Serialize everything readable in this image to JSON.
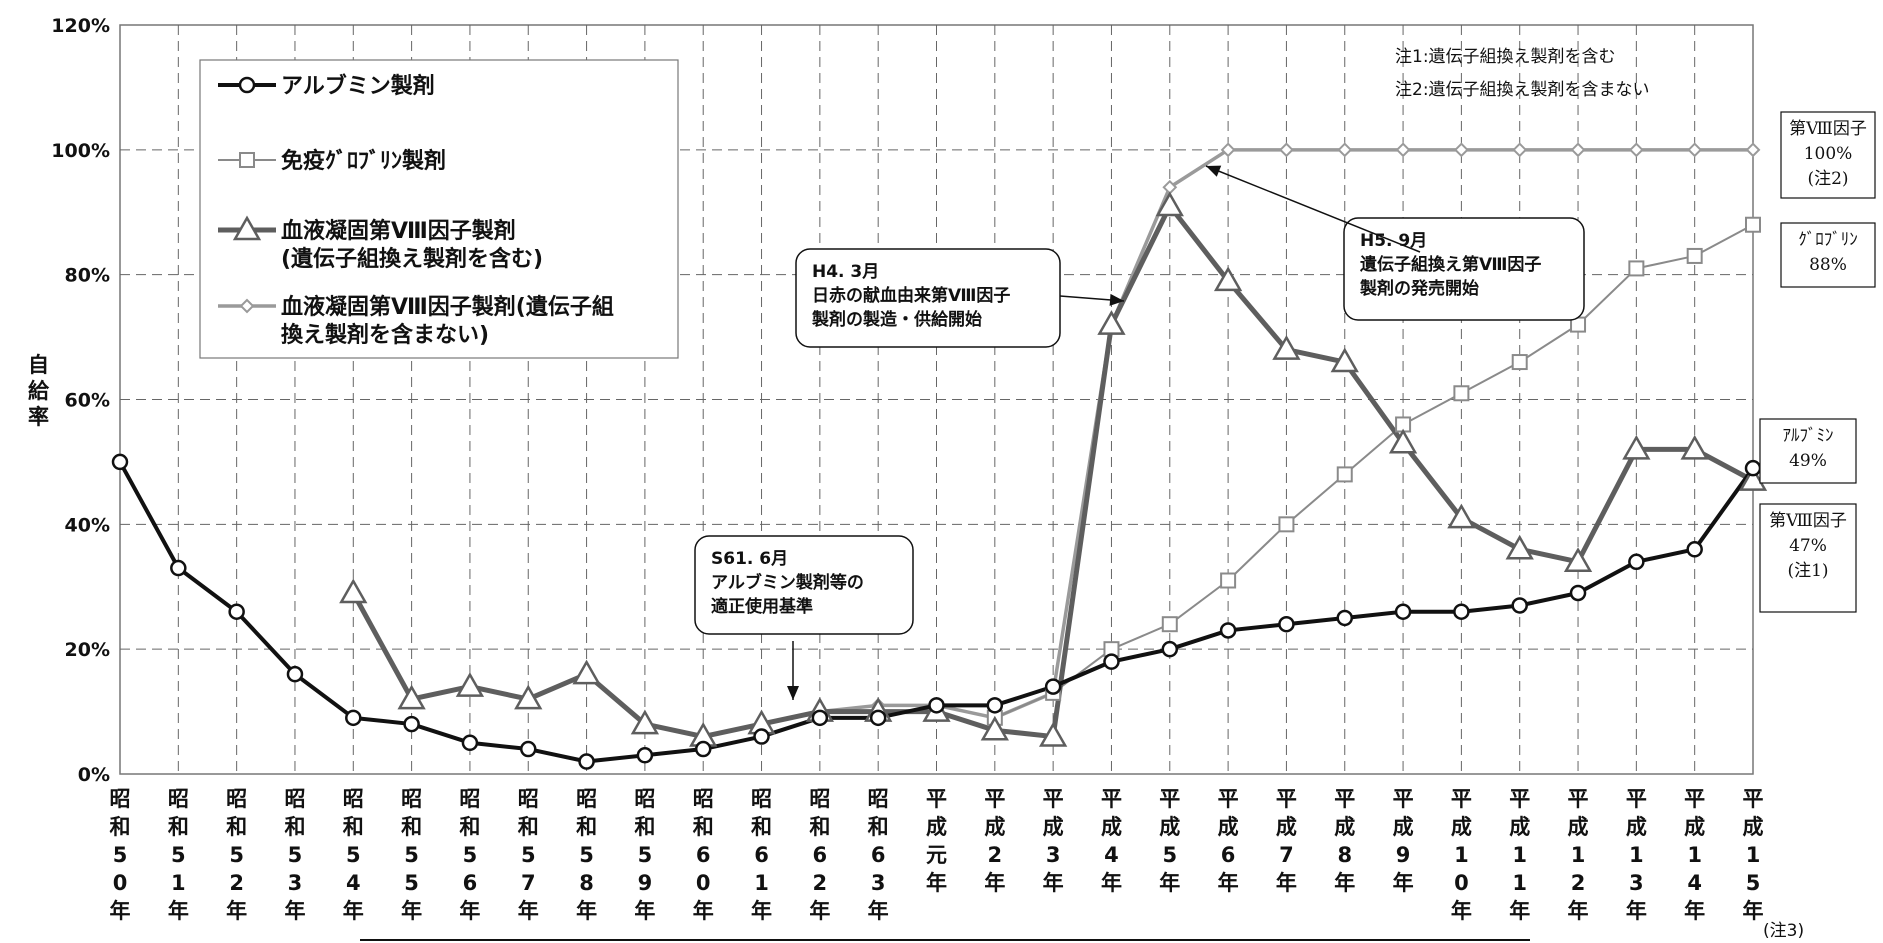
{
  "chart_data": {
    "type": "line",
    "ylabel": "自給率",
    "ylim": [
      0,
      120
    ],
    "yticks": [
      "0%",
      "20%",
      "40%",
      "60%",
      "80%",
      "100%",
      "120%"
    ],
    "grid": true,
    "legend_position": "top-left",
    "categories": [
      "昭和50年",
      "昭和51年",
      "昭和52年",
      "昭和53年",
      "昭和54年",
      "昭和55年",
      "昭和56年",
      "昭和57年",
      "昭和58年",
      "昭和59年",
      "昭和60年",
      "昭和61年",
      "昭和62年",
      "昭和63年",
      "平成元年",
      "平成2年",
      "平成3年",
      "平成4年",
      "平成5年",
      "平成6年",
      "平成7年",
      "平成8年",
      "平成9年",
      "平成10年",
      "平成11年",
      "平成12年",
      "平成13年",
      "平成14年",
      "平成15年"
    ],
    "category_labels": [
      [
        "昭",
        "和",
        "5",
        "0",
        "年"
      ],
      [
        "昭",
        "和",
        "5",
        "1",
        "年"
      ],
      [
        "昭",
        "和",
        "5",
        "2",
        "年"
      ],
      [
        "昭",
        "和",
        "5",
        "3",
        "年"
      ],
      [
        "昭",
        "和",
        "5",
        "4",
        "年"
      ],
      [
        "昭",
        "和",
        "5",
        "5",
        "年"
      ],
      [
        "昭",
        "和",
        "5",
        "6",
        "年"
      ],
      [
        "昭",
        "和",
        "5",
        "7",
        "年"
      ],
      [
        "昭",
        "和",
        "5",
        "8",
        "年"
      ],
      [
        "昭",
        "和",
        "5",
        "9",
        "年"
      ],
      [
        "昭",
        "和",
        "6",
        "0",
        "年"
      ],
      [
        "昭",
        "和",
        "6",
        "1",
        "年"
      ],
      [
        "昭",
        "和",
        "6",
        "2",
        "年"
      ],
      [
        "昭",
        "和",
        "6",
        "3",
        "年"
      ],
      [
        "平",
        "成",
        "元",
        "年"
      ],
      [
        "平",
        "成",
        "2",
        "年"
      ],
      [
        "平",
        "成",
        "3",
        "年"
      ],
      [
        "平",
        "成",
        "4",
        "年"
      ],
      [
        "平",
        "成",
        "5",
        "年"
      ],
      [
        "平",
        "成",
        "6",
        "年"
      ],
      [
        "平",
        "成",
        "7",
        "年"
      ],
      [
        "平",
        "成",
        "8",
        "年"
      ],
      [
        "平",
        "成",
        "9",
        "年"
      ],
      [
        "平",
        "成",
        "1",
        "0",
        "年"
      ],
      [
        "平",
        "成",
        "1",
        "1",
        "年"
      ],
      [
        "平",
        "成",
        "1",
        "2",
        "年"
      ],
      [
        "平",
        "成",
        "1",
        "3",
        "年"
      ],
      [
        "平",
        "成",
        "1",
        "4",
        "年"
      ],
      [
        "平",
        "成",
        "1",
        "5",
        "年"
      ]
    ],
    "x_note": "(注3)",
    "series": [
      {
        "name": "アルブミン製剤",
        "marker": "circle",
        "color": "#111111",
        "values": [
          50,
          33,
          26,
          16,
          9,
          8,
          5,
          4,
          2,
          3,
          4,
          6,
          9,
          9,
          11,
          11,
          14,
          18,
          20,
          23,
          24,
          25,
          26,
          26,
          27,
          29,
          34,
          36,
          49
        ]
      },
      {
        "name": "免疫ｸﾞﾛﾌﾞﾘﾝ製剤",
        "marker": "square",
        "color": "#8a8a8a",
        "values": [
          null,
          null,
          null,
          null,
          null,
          null,
          null,
          null,
          null,
          null,
          null,
          null,
          null,
          null,
          null,
          9,
          13,
          20,
          24,
          31,
          40,
          48,
          56,
          61,
          66,
          72,
          81,
          83,
          88
        ]
      },
      {
        "name": "血液凝固第Ⅷ因子製剤\n(遺伝子組換え製剤を含む)",
        "marker": "triangle",
        "color": "#5e5e5e",
        "values": [
          null,
          null,
          null,
          null,
          29,
          12,
          14,
          12,
          16,
          8,
          6,
          8,
          10,
          10,
          10,
          7,
          6,
          72,
          91,
          79,
          68,
          66,
          53,
          41,
          36,
          34,
          52,
          52,
          47
        ]
      },
      {
        "name": "血液凝固第Ⅷ因子製剤(遺伝子組\n換え製剤を含まない)",
        "marker": "diamond",
        "color": "#9a9a9a",
        "values": [
          null,
          null,
          null,
          null,
          null,
          null,
          null,
          null,
          null,
          null,
          6,
          8,
          10,
          11,
          11,
          9,
          13,
          72,
          94,
          100,
          100,
          100,
          100,
          100,
          100,
          100,
          100,
          100,
          100
        ]
      }
    ],
    "notes": [
      "注1:遺伝子組換え製剤を含む",
      "注2:遺伝子組換え製剤を含まない"
    ],
    "annotations": [
      {
        "id": "s61",
        "lines": [
          "S61. 6月",
          "アルブミン製剤等の",
          "適正使用基準"
        ]
      },
      {
        "id": "h4",
        "lines": [
          "H4. 3月",
          "日赤の献血由来第Ⅷ因子",
          "製剤の製造・供給開始"
        ]
      },
      {
        "id": "h5",
        "lines": [
          "H5. 9月",
          "遺伝子組換え第Ⅷ因子",
          "製剤の発売開始"
        ]
      }
    ],
    "end_labels": [
      {
        "id": "f8-ex",
        "lines": [
          "第Ⅷ因子",
          "100%",
          "(注2)"
        ]
      },
      {
        "id": "glob",
        "lines": [
          "ｸﾞﾛﾌﾞﾘﾝ",
          "88%"
        ]
      },
      {
        "id": "alb",
        "lines": [
          "ｱﾙﾌﾞﾐﾝ",
          "49%"
        ]
      },
      {
        "id": "f8-in",
        "lines": [
          "第Ⅷ因子",
          "47%",
          "(注1)"
        ]
      }
    ]
  }
}
